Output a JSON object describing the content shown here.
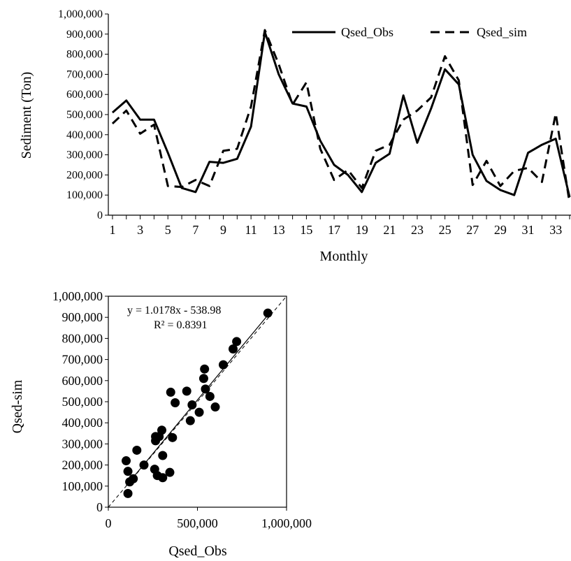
{
  "chart_data": [
    {
      "type": "line",
      "title": "",
      "xlabel": "Monthly",
      "ylabel": "Sediment (Ton)",
      "x": [
        1,
        2,
        3,
        4,
        5,
        6,
        7,
        8,
        9,
        10,
        11,
        12,
        13,
        14,
        15,
        16,
        17,
        18,
        19,
        20,
        21,
        22,
        23,
        24,
        25,
        26,
        27,
        28,
        29,
        30,
        31,
        32,
        33,
        34
      ],
      "x_ticks": [
        1,
        3,
        5,
        7,
        9,
        11,
        13,
        15,
        17,
        19,
        21,
        23,
        25,
        27,
        29,
        31,
        33
      ],
      "ylim": [
        0,
        1000000
      ],
      "y_ticks": [
        0,
        100000,
        200000,
        300000,
        400000,
        500000,
        600000,
        700000,
        800000,
        900000,
        1000000
      ],
      "y_tick_labels": [
        "0",
        "100,000",
        "200,000",
        "300,000",
        "400,000",
        "500,000",
        "600,000",
        "700,000",
        "800,000",
        "900,000",
        "1,000,000"
      ],
      "legend_position": "top-right",
      "grid": false,
      "series": [
        {
          "name": "Qsed_Obs",
          "style": "solid",
          "color": "#000000",
          "values": [
            510000,
            570000,
            475000,
            475000,
            310000,
            135000,
            115000,
            265000,
            260000,
            280000,
            440000,
            910000,
            700000,
            555000,
            540000,
            370000,
            250000,
            200000,
            115000,
            260000,
            305000,
            595000,
            360000,
            530000,
            725000,
            650000,
            300000,
            170000,
            125000,
            100000,
            310000,
            350000,
            380000,
            90000
          ]
        },
        {
          "name": "Qsed_sim",
          "style": "dashed",
          "color": "#000000",
          "values": [
            455000,
            520000,
            405000,
            450000,
            145000,
            140000,
            175000,
            145000,
            320000,
            330000,
            540000,
            920000,
            750000,
            550000,
            660000,
            330000,
            175000,
            225000,
            135000,
            320000,
            350000,
            475000,
            520000,
            585000,
            790000,
            670000,
            150000,
            270000,
            145000,
            220000,
            235000,
            165000,
            505000,
            60000
          ]
        }
      ]
    },
    {
      "type": "scatter",
      "title": "",
      "xlabel": "Qsed_Obs",
      "ylabel": "Qsed-sim",
      "xlim": [
        0,
        1000000
      ],
      "ylim": [
        0,
        1000000
      ],
      "x_ticks": [
        0,
        500000,
        1000000
      ],
      "x_tick_labels": [
        "0",
        "500,000",
        "1,000,000"
      ],
      "y_ticks": [
        0,
        100000,
        200000,
        300000,
        400000,
        500000,
        600000,
        700000,
        800000,
        900000,
        1000000
      ],
      "y_tick_labels": [
        "0",
        "100,000",
        "200,000",
        "300,000",
        "400,000",
        "500,000",
        "600,000",
        "700,000",
        "800,000",
        "900,000",
        "1,000,000"
      ],
      "grid": false,
      "equation": "y = 1.0178x   - 538.98",
      "r2": "R² = 0.8391",
      "trendline": {
        "slope": 1.0178,
        "intercept": -538.98
      },
      "points": [
        {
          "x": 895000,
          "y": 920000
        },
        {
          "x": 720000,
          "y": 785000
        },
        {
          "x": 700000,
          "y": 750000
        },
        {
          "x": 645000,
          "y": 675000
        },
        {
          "x": 540000,
          "y": 655000
        },
        {
          "x": 535000,
          "y": 610000
        },
        {
          "x": 545000,
          "y": 560000
        },
        {
          "x": 570000,
          "y": 525000
        },
        {
          "x": 600000,
          "y": 475000
        },
        {
          "x": 510000,
          "y": 450000
        },
        {
          "x": 470000,
          "y": 485000
        },
        {
          "x": 440000,
          "y": 550000
        },
        {
          "x": 460000,
          "y": 410000
        },
        {
          "x": 350000,
          "y": 545000
        },
        {
          "x": 375000,
          "y": 495000
        },
        {
          "x": 300000,
          "y": 365000
        },
        {
          "x": 265000,
          "y": 335000
        },
        {
          "x": 265000,
          "y": 315000
        },
        {
          "x": 360000,
          "y": 330000
        },
        {
          "x": 285000,
          "y": 335000
        },
        {
          "x": 305000,
          "y": 245000
        },
        {
          "x": 160000,
          "y": 270000
        },
        {
          "x": 200000,
          "y": 200000
        },
        {
          "x": 260000,
          "y": 180000
        },
        {
          "x": 275000,
          "y": 150000
        },
        {
          "x": 305000,
          "y": 140000
        },
        {
          "x": 345000,
          "y": 165000
        },
        {
          "x": 100000,
          "y": 220000
        },
        {
          "x": 110000,
          "y": 170000
        },
        {
          "x": 120000,
          "y": 120000
        },
        {
          "x": 140000,
          "y": 135000
        },
        {
          "x": 110000,
          "y": 65000
        }
      ]
    }
  ]
}
